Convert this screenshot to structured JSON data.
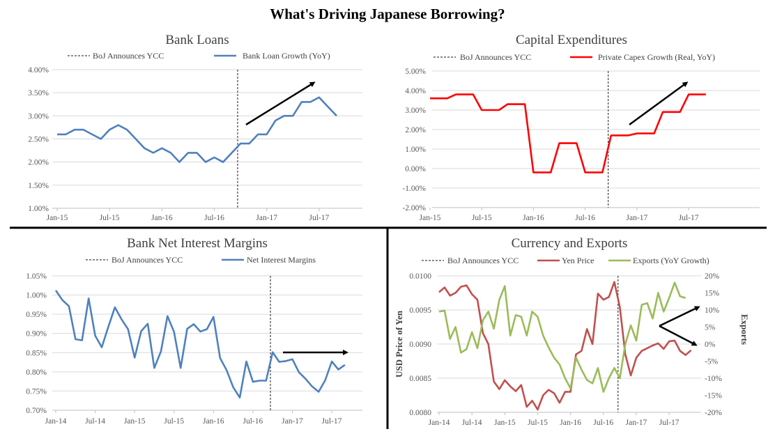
{
  "title": "What's Driving Japanese Borrowing?",
  "chart_data": [
    {
      "type": "line",
      "title": "Bank Loans",
      "xtick_labels": [
        "Jan-15",
        "Jul-15",
        "Jan-16",
        "Jul-16",
        "Jan-17",
        "Jul-17"
      ],
      "ylim": [
        1.0,
        4.0
      ],
      "ytick_labels": [
        "1.00%",
        "1.50%",
        "2.00%",
        "2.50%",
        "3.00%",
        "3.50%",
        "4.00%"
      ],
      "grid": true,
      "vline": {
        "name": "BoJ Announces YCC",
        "date": "2016-09-21",
        "style": "dashed"
      },
      "annotation": "up-right arrow",
      "series": [
        {
          "name": "Bank Loan Growth (YoY)",
          "color": "#4f81bd",
          "start": "2015-01",
          "frequency": "monthly",
          "values": [
            2.6,
            2.6,
            2.7,
            2.7,
            2.6,
            2.5,
            2.7,
            2.8,
            2.7,
            2.5,
            2.3,
            2.2,
            2.3,
            2.2,
            2.0,
            2.2,
            2.2,
            2.0,
            2.1,
            2.0,
            2.2,
            2.4,
            2.4,
            2.6,
            2.6,
            2.9,
            3.0,
            3.0,
            3.3,
            3.3,
            3.4,
            3.2,
            3.0
          ]
        }
      ]
    },
    {
      "type": "line",
      "title": "Capital Expenditures",
      "xtick_labels": [
        "Jan-15",
        "Jul-15",
        "Jan-16",
        "Jul-16",
        "Jan-17",
        "Jul-17"
      ],
      "ylim": [
        -2.0,
        5.0
      ],
      "ytick_labels": [
        "-2.00%",
        "-1.00%",
        "0.00%",
        "1.00%",
        "2.00%",
        "3.00%",
        "4.00%",
        "5.00%"
      ],
      "grid": true,
      "vline": {
        "name": "BoJ Announces YCC",
        "date": "2016-09-21",
        "style": "dashed"
      },
      "annotation": "up-right arrow",
      "series": [
        {
          "name": "Private Capex Growth (Real, YoY)",
          "color": "#ff0000",
          "start": "2015-01",
          "frequency": "monthly",
          "values": [
            3.6,
            3.6,
            3.6,
            3.8,
            3.8,
            3.8,
            3.0,
            3.0,
            3.0,
            3.3,
            3.3,
            3.3,
            -0.2,
            -0.2,
            -0.2,
            1.3,
            1.3,
            1.3,
            -0.2,
            -0.2,
            -0.2,
            1.7,
            1.7,
            1.7,
            1.8,
            1.8,
            1.8,
            2.9,
            2.9,
            2.9,
            3.8,
            3.8,
            3.8
          ]
        }
      ]
    },
    {
      "type": "line",
      "title": "Bank Net Interest Margins",
      "xtick_labels": [
        "Jan-14",
        "Jul-14",
        "Jan-15",
        "Jul-15",
        "Jan-16",
        "Jul-16",
        "Jan-17",
        "Jul-17"
      ],
      "ylim": [
        0.7,
        1.05
      ],
      "ytick_labels": [
        "0.70%",
        "0.75%",
        "0.80%",
        "0.85%",
        "0.90%",
        "0.95%",
        "1.00%",
        "1.05%"
      ],
      "grid": true,
      "vline": {
        "name": "BoJ Announces YCC",
        "date": "2016-09-21",
        "style": "dashed"
      },
      "annotation": "right arrow",
      "series": [
        {
          "name": "Net Interest Margins",
          "color": "#4f81bd",
          "start": "2014-01",
          "frequency": "monthly",
          "values": [
            1.012,
            0.987,
            0.971,
            0.885,
            0.882,
            0.991,
            0.894,
            0.864,
            0.917,
            0.968,
            0.937,
            0.911,
            0.837,
            0.906,
            0.925,
            0.81,
            0.853,
            0.945,
            0.904,
            0.81,
            0.912,
            0.924,
            0.905,
            0.911,
            0.943,
            0.836,
            0.804,
            0.76,
            0.733,
            0.827,
            0.774,
            0.777,
            0.777,
            0.851,
            0.826,
            0.828,
            0.833,
            0.799,
            0.782,
            0.762,
            0.748,
            0.778,
            0.827,
            0.806,
            0.818
          ]
        }
      ]
    },
    {
      "type": "line",
      "title": "Currency and Exports",
      "xtick_labels": [
        "Jan-14",
        "Jul-14",
        "Jan-15",
        "Jul-15",
        "Jan-16",
        "Jul-16",
        "Jan-17",
        "Jul-17"
      ],
      "ylabel": "USD Price of Yen",
      "ylim": [
        0.008,
        0.01
      ],
      "ytick_labels": [
        "0.0080",
        "0.0085",
        "0.0090",
        "0.0095",
        "0.0100"
      ],
      "y2label": "Exports",
      "y2lim": [
        -20,
        20
      ],
      "y2tick_labels": [
        "-20%",
        "-15%",
        "-10%",
        "-5%",
        "0%",
        "5%",
        "10%",
        "15%",
        "20%"
      ],
      "grid": true,
      "vline": {
        "name": "BoJ Announces YCC",
        "date": "2016-09-21",
        "style": "dashed"
      },
      "annotation": "diverging arrows",
      "series": [
        {
          "name": "Yen Price",
          "color": "#c0504d",
          "axis": "left",
          "start": "2014-01",
          "frequency": "monthly",
          "values": [
            0.00976,
            0.00983,
            0.00971,
            0.00975,
            0.00984,
            0.00986,
            0.00973,
            0.00965,
            0.00916,
            0.009,
            0.00845,
            0.00834,
            0.00847,
            0.00838,
            0.00831,
            0.0084,
            0.00808,
            0.00817,
            0.00804,
            0.00825,
            0.00833,
            0.00828,
            0.00814,
            0.0083,
            0.0083,
            0.00885,
            0.0089,
            0.00922,
            0.009,
            0.00974,
            0.00965,
            0.00969,
            0.00991,
            0.00954,
            0.00885,
            0.00854,
            0.0088,
            0.0089,
            0.00894,
            0.00898,
            0.00901,
            0.00893,
            0.00904,
            0.00905,
            0.0089,
            0.00884,
            0.00891
          ]
        },
        {
          "name": "Exports (YoY Growth)",
          "color": "#9bbb59",
          "axis": "right",
          "start": "2014-01",
          "frequency": "monthly",
          "values": [
            9.5,
            9.8,
            1.5,
            5,
            -2.5,
            -1.5,
            3.5,
            -1.2,
            7,
            9.5,
            4.5,
            13,
            17,
            2.5,
            8.5,
            8,
            2.5,
            9.5,
            8,
            2.5,
            -1,
            -4,
            -6,
            -10,
            -13,
            -4,
            -7.5,
            -10.5,
            -11.5,
            -7,
            -14,
            -10,
            -7,
            -10,
            0,
            5.5,
            1,
            11.5,
            12,
            7.5,
            15,
            9.5,
            13.5,
            18,
            14,
            13.5
          ]
        }
      ]
    }
  ]
}
